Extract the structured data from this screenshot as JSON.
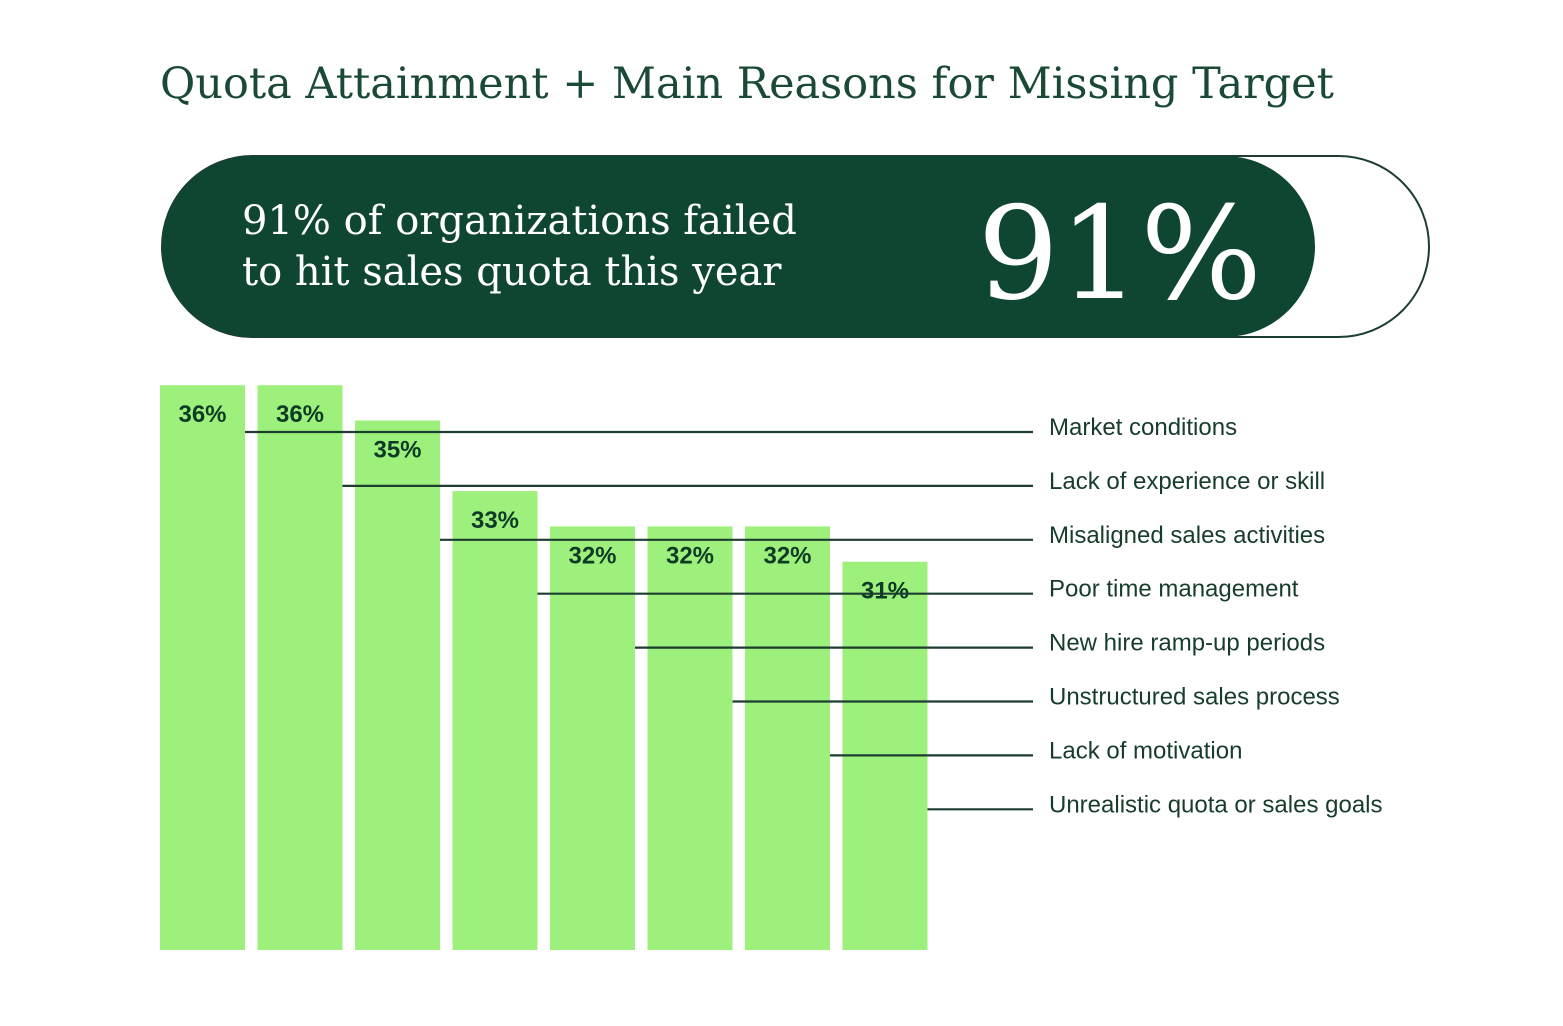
{
  "header": {
    "title": "Quota Attainment + Main Reasons for Missing Target"
  },
  "highlight": {
    "line1": "91% of organizations failed",
    "line2": "to hit sales quota this year",
    "big_value_text": "91%",
    "value": 91
  },
  "colors": {
    "dark_green": "#0f4632",
    "bar_green": "#9ef07c",
    "line": "#1d3d30",
    "text": "#173c2c"
  },
  "chart_data": {
    "type": "bar",
    "title": "Main Reasons for Missing Target",
    "xlabel": "",
    "ylabel": "",
    "ylim": [
      0,
      40
    ],
    "categories": [
      "Market conditions",
      "Lack of experience or skill",
      "Misaligned sales activities",
      "Poor time management",
      "New hire ramp-up periods",
      "Unstructured sales process",
      "Lack of motivation",
      "Unrealistic quota or sales goals"
    ],
    "values": [
      36,
      36,
      35,
      33,
      32,
      32,
      32,
      31
    ],
    "value_labels": [
      "36%",
      "36%",
      "35%",
      "33%",
      "32%",
      "32%",
      "32%",
      "31%"
    ]
  }
}
